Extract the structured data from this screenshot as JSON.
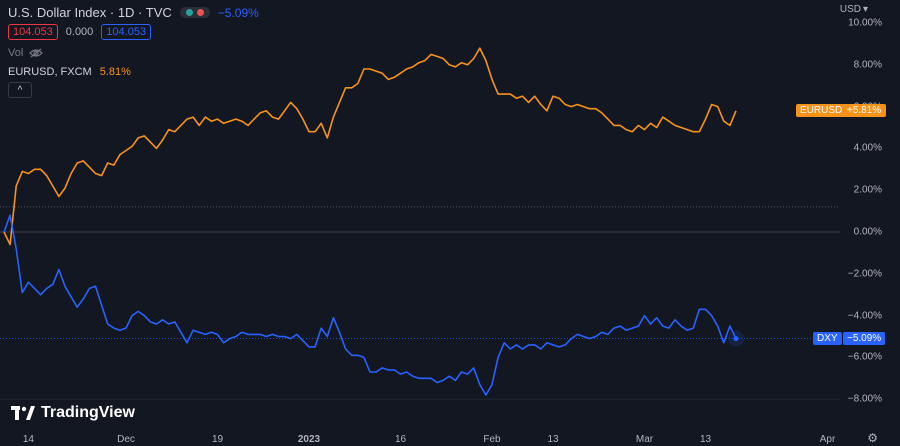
{
  "header": {
    "title": "U.S. Dollar Index · 1D · TVC",
    "change": "−5.09%",
    "sell_price": "104.053",
    "spread": "0.000",
    "buy_price": "104.053",
    "vol_label": "Vol",
    "compare_symbol": "EURUSD, FXCM",
    "compare_change": "5.81%",
    "collapse_glyph": "^"
  },
  "axis": {
    "currency": "USD"
  },
  "badges": {
    "eurusd_name": "EURUSD",
    "eurusd_value": "+5.81%",
    "dxy_name": "DXY",
    "dxy_value": "−5.09%"
  },
  "logo": {
    "text": "TradingView"
  },
  "colors": {
    "background": "#131722",
    "eurusd": "#f7931a",
    "dxy": "#2962ff",
    "grid_text": "#b2b5be"
  },
  "chart_data": {
    "type": "line",
    "y_unit": "%",
    "y_ticks": [
      "10.00%",
      "8.00%",
      "6.00%",
      "4.00%",
      "2.00%",
      "0.00%",
      "−2.00%",
      "−4.00%",
      "−6.00%",
      "−8.00%"
    ],
    "y_tick_values": [
      10,
      8,
      6,
      4,
      2,
      0,
      -2,
      -4,
      -6,
      -8
    ],
    "x_ticks": [
      "14",
      "Dec",
      "19",
      "2023",
      "16",
      "Feb",
      "13",
      "Mar",
      "13",
      "Apr"
    ],
    "x_tick_index": [
      4,
      20,
      35,
      50,
      65,
      80,
      90,
      105,
      115,
      135
    ],
    "ylim": [
      -8.5,
      10.5
    ],
    "grid": false,
    "series": [
      {
        "name": "EURUSD",
        "values": [
          0.0,
          -0.6,
          2.2,
          2.9,
          2.8,
          3.0,
          3.0,
          2.7,
          2.2,
          1.7,
          2.1,
          2.8,
          3.3,
          3.4,
          3.1,
          2.8,
          2.7,
          3.3,
          3.2,
          3.7,
          3.9,
          4.1,
          4.5,
          4.6,
          4.3,
          4.0,
          4.4,
          4.9,
          4.8,
          5.1,
          5.4,
          5.5,
          5.1,
          5.5,
          5.3,
          5.4,
          5.2,
          5.3,
          5.4,
          5.3,
          5.1,
          5.4,
          5.7,
          5.8,
          5.5,
          5.4,
          5.8,
          6.2,
          5.9,
          5.4,
          4.8,
          4.8,
          5.2,
          4.5,
          5.5,
          6.2,
          6.9,
          6.9,
          7.1,
          7.8,
          7.8,
          7.7,
          7.6,
          7.3,
          7.4,
          7.6,
          7.8,
          7.9,
          8.1,
          8.2,
          8.5,
          8.4,
          8.3,
          8.0,
          7.9,
          8.1,
          8.0,
          8.3,
          8.8,
          8.2,
          7.3,
          6.6,
          6.6,
          6.6,
          6.4,
          6.5,
          6.2,
          6.5,
          6.1,
          5.8,
          6.5,
          6.4,
          6.1,
          6.0,
          6.1,
          6.0,
          5.9,
          5.9,
          5.7,
          5.4,
          5.1,
          5.1,
          4.9,
          4.8,
          5.1,
          4.9,
          5.2,
          5.0,
          5.5,
          5.3,
          5.1,
          5.0,
          4.9,
          4.8,
          4.8,
          5.4,
          6.1,
          6.0,
          5.3,
          5.1,
          5.8
        ],
        "color": "#f7931a"
      },
      {
        "name": "DXY",
        "values": [
          0.0,
          0.8,
          -0.8,
          -2.9,
          -2.4,
          -2.7,
          -3.0,
          -2.7,
          -2.5,
          -1.8,
          -2.6,
          -3.1,
          -3.6,
          -3.2,
          -2.7,
          -2.6,
          -3.5,
          -4.4,
          -4.6,
          -4.7,
          -4.6,
          -4.0,
          -3.8,
          -4.0,
          -4.3,
          -4.4,
          -4.2,
          -4.4,
          -4.3,
          -4.8,
          -5.3,
          -4.7,
          -4.8,
          -4.9,
          -4.8,
          -4.9,
          -5.3,
          -5.1,
          -5.0,
          -4.8,
          -4.9,
          -4.9,
          -4.9,
          -5.0,
          -4.9,
          -5.0,
          -5.0,
          -5.1,
          -4.9,
          -5.2,
          -5.5,
          -5.5,
          -4.6,
          -5.0,
          -4.1,
          -4.8,
          -5.6,
          -5.9,
          -5.9,
          -6.0,
          -6.7,
          -6.7,
          -6.5,
          -6.6,
          -6.6,
          -6.8,
          -6.7,
          -6.9,
          -7.0,
          -7.0,
          -7.0,
          -7.2,
          -7.1,
          -6.9,
          -7.1,
          -6.7,
          -6.8,
          -6.5,
          -7.3,
          -7.8,
          -7.3,
          -6.0,
          -5.3,
          -5.6,
          -5.4,
          -5.6,
          -5.4,
          -5.4,
          -5.6,
          -5.3,
          -5.4,
          -5.5,
          -5.4,
          -5.1,
          -4.9,
          -5.0,
          -5.1,
          -5.0,
          -4.8,
          -4.9,
          -4.6,
          -4.5,
          -4.7,
          -4.6,
          -4.5,
          -4.0,
          -4.4,
          -4.1,
          -4.5,
          -4.6,
          -4.2,
          -4.5,
          -4.7,
          -4.6,
          -3.7,
          -3.7,
          -4.0,
          -4.5,
          -5.3,
          -4.5,
          -5.1
        ],
        "color": "#2962ff"
      }
    ],
    "crosshair_value": 1.2,
    "last_value_line": -5.09
  }
}
